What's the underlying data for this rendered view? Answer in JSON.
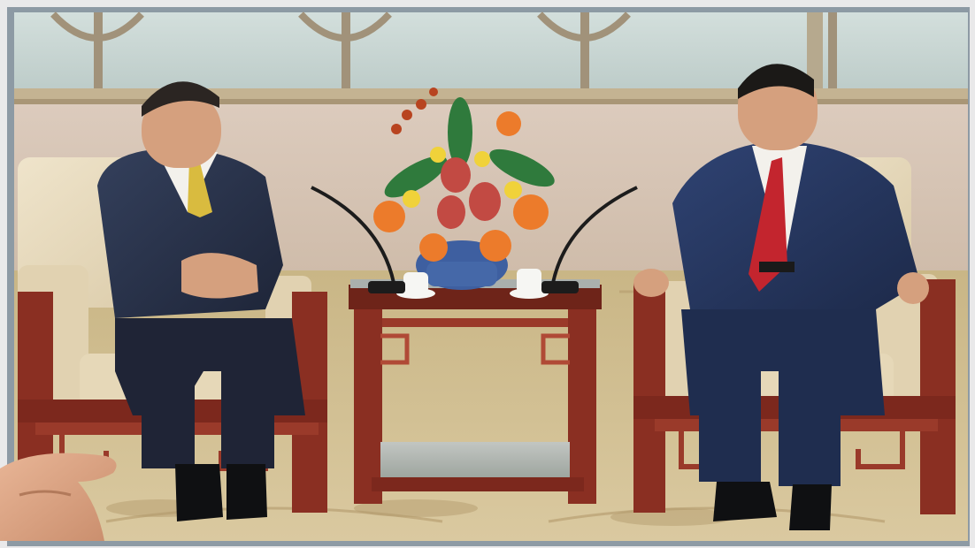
{
  "photo": {
    "subjects": [
      "person-left",
      "person-right"
    ],
    "colors": {
      "frame": "#8d9aa4",
      "window": "#c9d6d3",
      "wall": "#d8c7b9",
      "carpet": "#d2c08f",
      "wood": "#8a2f22",
      "cushion": "#e8dcc0",
      "suit": "#28314a",
      "tie_left": "#d9bb3f",
      "tie_right": "#c3252e",
      "skin": "#d5a07e"
    }
  }
}
